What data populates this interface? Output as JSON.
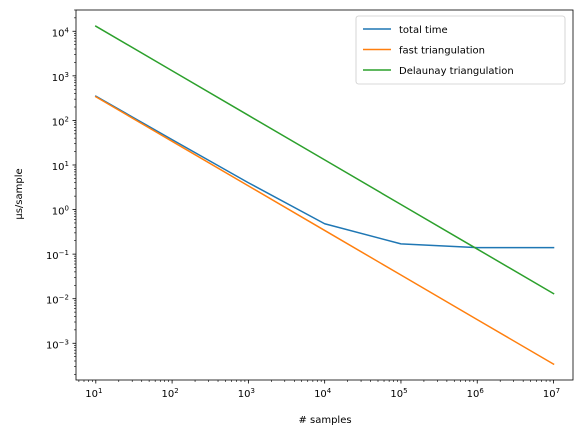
{
  "chart_data": {
    "type": "line",
    "xscale": "log",
    "yscale": "log",
    "xlabel": "# samples",
    "ylabel": "μs/sample",
    "xlim": [
      5.5,
      18000000
    ],
    "ylim": [
      0.00015,
      30000
    ],
    "grid": false,
    "legend_position": "top-right",
    "x_ticks": [
      {
        "value": 10,
        "base": "10",
        "exp": "1"
      },
      {
        "value": 100,
        "base": "10",
        "exp": "2"
      },
      {
        "value": 1000,
        "base": "10",
        "exp": "3"
      },
      {
        "value": 10000,
        "base": "10",
        "exp": "4"
      },
      {
        "value": 100000,
        "base": "10",
        "exp": "5"
      },
      {
        "value": 1000000,
        "base": "10",
        "exp": "6"
      },
      {
        "value": 10000000,
        "base": "10",
        "exp": "7"
      }
    ],
    "y_ticks": [
      {
        "value": 0.001,
        "base": "10",
        "exp": "−3"
      },
      {
        "value": 0.01,
        "base": "10",
        "exp": "−2"
      },
      {
        "value": 0.1,
        "base": "10",
        "exp": "−1"
      },
      {
        "value": 1,
        "base": "10",
        "exp": "0"
      },
      {
        "value": 10,
        "base": "10",
        "exp": "1"
      },
      {
        "value": 100,
        "base": "10",
        "exp": "2"
      },
      {
        "value": 1000,
        "base": "10",
        "exp": "3"
      },
      {
        "value": 10000,
        "base": "10",
        "exp": "4"
      }
    ],
    "x": [
      10,
      100,
      1000,
      10000,
      100000,
      1000000,
      10000000
    ],
    "series": [
      {
        "name": "total time",
        "color": "#1f77b4",
        "values": [
          350,
          37,
          4,
          0.48,
          0.17,
          0.14,
          0.14
        ]
      },
      {
        "name": "fast triangulation",
        "color": "#ff7f0e",
        "values": [
          340,
          34,
          3.4,
          0.34,
          0.034,
          0.0034,
          0.00034
        ]
      },
      {
        "name": "Delaunay triangulation",
        "color": "#2ca02c",
        "values": [
          13000,
          1300,
          130,
          13,
          1.3,
          0.13,
          0.013
        ]
      }
    ]
  }
}
